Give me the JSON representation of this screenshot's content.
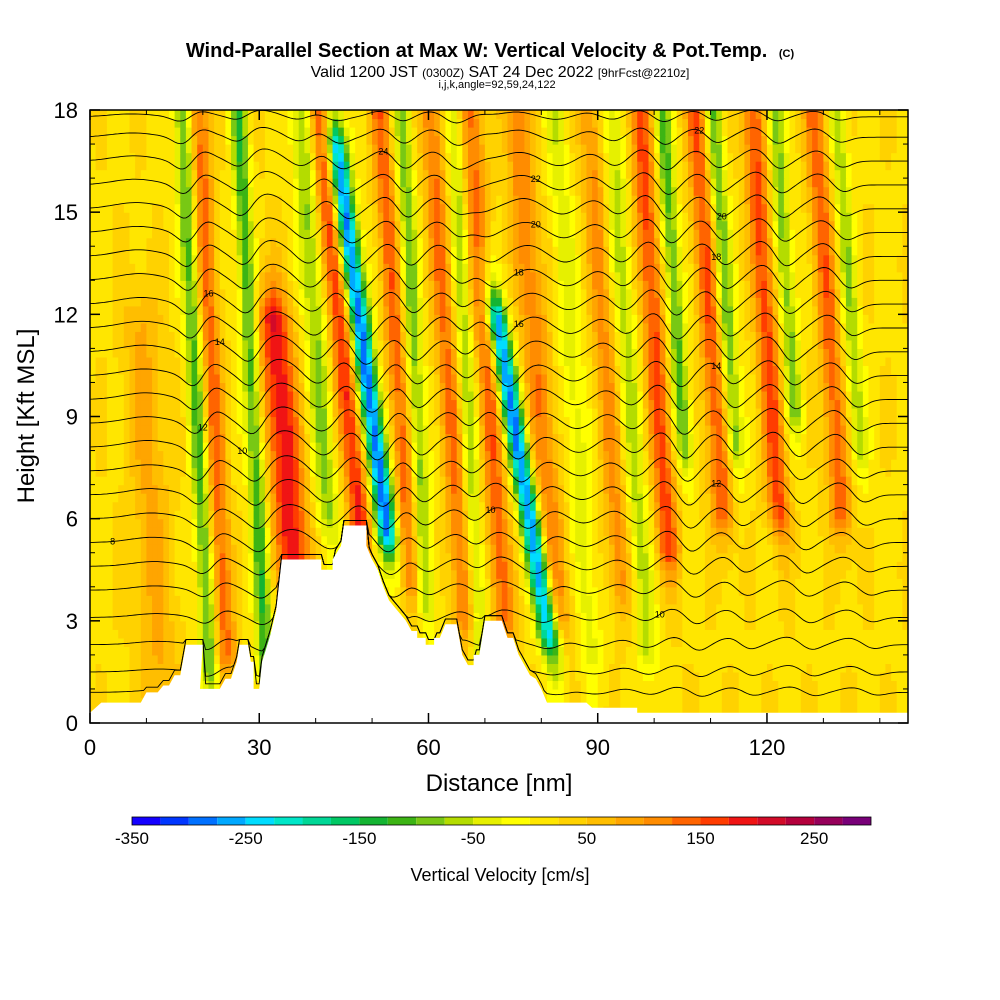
{
  "header": {
    "title_main": "Wind-Parallel Section at Max W: Vertical Velocity & Pot.Temp.",
    "title_unit": "(C)",
    "line2": [
      {
        "text": "Valid 1200 JST ",
        "size": "normal"
      },
      {
        "text": "(0300Z)",
        "size": "small"
      },
      {
        "text": " SAT 24 Dec 2022 ",
        "size": "normal"
      },
      {
        "text": "[9hrFcst@2210z]",
        "size": "small"
      }
    ],
    "line3": "i,j,k,angle=92,59,24,122"
  },
  "chart_data": {
    "type": "heatmap",
    "xlabel": "Distance [nm]",
    "ylabel": "Height [Kft MSL]",
    "xlim": [
      0,
      145
    ],
    "ylim": [
      0,
      18
    ],
    "x_ticks": [
      0,
      30,
      60,
      90,
      120
    ],
    "x_tick_labels": [
      "0",
      "30",
      "60",
      "90",
      "120"
    ],
    "y_ticks": [
      0,
      3,
      6,
      9,
      12,
      15,
      18
    ],
    "y_tick_labels": [
      "0",
      "3",
      "6",
      "9",
      "12",
      "15",
      "18"
    ],
    "vertical_velocity_bands": [
      {
        "x": 19,
        "w_cms": -130,
        "top_kft": 18,
        "bottom_kft": 1.5,
        "half_width_nm": 1.5,
        "tilt_nm_per_kft": -0.3
      },
      {
        "x": 22,
        "w_cms": 120,
        "top_kft": 18,
        "bottom_kft": 2.0,
        "half_width_nm": 1.8,
        "tilt_nm_per_kft": -0.3
      },
      {
        "x": 29,
        "w_cms": -140,
        "top_kft": 18,
        "bottom_kft": 1.5,
        "half_width_nm": 1.5,
        "tilt_nm_per_kft": -0.3
      },
      {
        "x": 34,
        "w_cms": 180,
        "top_kft": 12,
        "bottom_kft": 4.5,
        "half_width_nm": 3.0,
        "tilt_nm_per_kft": -0.5
      },
      {
        "x": 41,
        "w_cms": -100,
        "top_kft": 18,
        "bottom_kft": 6,
        "half_width_nm": 2.0,
        "tilt_nm_per_kft": -0.4
      },
      {
        "x": 46,
        "w_cms": 160,
        "top_kft": 18,
        "bottom_kft": 5.5,
        "half_width_nm": 2.0,
        "tilt_nm_per_kft": -0.6
      },
      {
        "x": 50,
        "w_cms": -320,
        "top_kft": 17,
        "bottom_kft": 5.5,
        "half_width_nm": 1.8,
        "tilt_nm_per_kft": -0.8
      },
      {
        "x": 55,
        "w_cms": 120,
        "top_kft": 18,
        "bottom_kft": 4,
        "half_width_nm": 1.8,
        "tilt_nm_per_kft": -0.4
      },
      {
        "x": 58,
        "w_cms": -110,
        "top_kft": 18,
        "bottom_kft": 3.5,
        "half_width_nm": 1.5,
        "tilt_nm_per_kft": -0.3
      },
      {
        "x": 64,
        "w_cms": 110,
        "top_kft": 18,
        "bottom_kft": 3,
        "half_width_nm": 2.0,
        "tilt_nm_per_kft": -0.4
      },
      {
        "x": 67,
        "w_cms": -90,
        "top_kft": 18,
        "bottom_kft": 2,
        "half_width_nm": 1.5,
        "tilt_nm_per_kft": -0.3
      },
      {
        "x": 71,
        "w_cms": 120,
        "top_kft": 18,
        "bottom_kft": 3,
        "half_width_nm": 2.0,
        "tilt_nm_per_kft": -0.4
      },
      {
        "x": 75,
        "w_cms": -300,
        "top_kft": 12,
        "bottom_kft": 2.5,
        "half_width_nm": 1.8,
        "tilt_nm_per_kft": -1.0
      },
      {
        "x": 80,
        "w_cms": 100,
        "top_kft": 18,
        "bottom_kft": 3,
        "half_width_nm": 2.5,
        "tilt_nm_per_kft": -0.5
      },
      {
        "x": 86,
        "w_cms": -60,
        "top_kft": 18,
        "bottom_kft": 2,
        "half_width_nm": 2.0,
        "tilt_nm_per_kft": -0.4
      },
      {
        "x": 92,
        "w_cms": 90,
        "top_kft": 18,
        "bottom_kft": 4,
        "half_width_nm": 2.0,
        "tilt_nm_per_kft": -0.4
      },
      {
        "x": 96,
        "w_cms": -80,
        "top_kft": 18,
        "bottom_kft": 2,
        "half_width_nm": 1.8,
        "tilt_nm_per_kft": -0.4
      },
      {
        "x": 101,
        "w_cms": 140,
        "top_kft": 18,
        "bottom_kft": 5,
        "half_width_nm": 2.0,
        "tilt_nm_per_kft": -0.4
      },
      {
        "x": 105,
        "w_cms": -130,
        "top_kft": 18,
        "bottom_kft": 8,
        "half_width_nm": 1.5,
        "tilt_nm_per_kft": -0.4
      },
      {
        "x": 111,
        "w_cms": 130,
        "top_kft": 18,
        "bottom_kft": 6,
        "half_width_nm": 2.0,
        "tilt_nm_per_kft": -0.4
      },
      {
        "x": 114,
        "w_cms": -120,
        "top_kft": 18,
        "bottom_kft": 8,
        "half_width_nm": 1.5,
        "tilt_nm_per_kft": -0.4
      },
      {
        "x": 121,
        "w_cms": 140,
        "top_kft": 18,
        "bottom_kft": 6,
        "half_width_nm": 2.0,
        "tilt_nm_per_kft": -0.4
      },
      {
        "x": 125,
        "w_cms": -110,
        "top_kft": 18,
        "bottom_kft": 9,
        "half_width_nm": 1.5,
        "tilt_nm_per_kft": -0.4
      },
      {
        "x": 132,
        "w_cms": 120,
        "top_kft": 18,
        "bottom_kft": 6,
        "half_width_nm": 2.0,
        "tilt_nm_per_kft": -0.4
      },
      {
        "x": 136,
        "w_cms": -90,
        "top_kft": 18,
        "bottom_kft": 8,
        "half_width_nm": 1.5,
        "tilt_nm_per_kft": -0.4
      },
      {
        "x": 10,
        "w_cms": 60,
        "top_kft": 12,
        "bottom_kft": 1,
        "half_width_nm": 3.5,
        "tilt_nm_per_kft": -0.3
      }
    ],
    "background_w_cms": 20,
    "terrain_kft": [
      [
        0,
        0.3
      ],
      [
        2,
        0.6
      ],
      [
        9,
        0.6
      ],
      [
        10,
        0.9
      ],
      [
        12,
        0.9
      ],
      [
        13,
        1.1
      ],
      [
        14,
        1.1
      ],
      [
        15,
        1.4
      ],
      [
        16,
        1.4
      ],
      [
        17,
        2.3
      ],
      [
        20,
        2.3
      ],
      [
        19.5,
        1.0
      ],
      [
        23,
        1.0
      ],
      [
        24,
        1.3
      ],
      [
        25,
        1.3
      ],
      [
        26,
        1.8
      ],
      [
        26.5,
        2.3
      ],
      [
        28,
        2.3
      ],
      [
        28.5,
        1.8
      ],
      [
        29,
        1.8
      ],
      [
        29,
        1.0
      ],
      [
        30,
        1.0
      ],
      [
        30.5,
        1.8
      ],
      [
        32,
        2.6
      ],
      [
        33,
        3.3
      ],
      [
        34,
        4.8
      ],
      [
        41,
        4.8
      ],
      [
        41,
        4.5
      ],
      [
        43,
        4.5
      ],
      [
        43,
        4.8
      ],
      [
        44.5,
        5.2
      ],
      [
        45,
        5.8
      ],
      [
        49,
        5.8
      ],
      [
        49,
        5.2
      ],
      [
        50,
        4.8
      ],
      [
        51,
        4.5
      ],
      [
        52,
        4.0
      ],
      [
        53,
        3.6
      ],
      [
        54,
        3.4
      ],
      [
        55,
        3.2
      ],
      [
        56,
        3.0
      ],
      [
        57,
        2.7
      ],
      [
        58,
        2.7
      ],
      [
        58,
        2.5
      ],
      [
        59.5,
        2.5
      ],
      [
        59.5,
        2.3
      ],
      [
        61,
        2.3
      ],
      [
        61,
        2.5
      ],
      [
        62,
        2.5
      ],
      [
        63,
        2.9
      ],
      [
        65,
        2.9
      ],
      [
        66,
        2.0
      ],
      [
        67,
        1.7
      ],
      [
        68,
        1.7
      ],
      [
        68,
        2.0
      ],
      [
        69,
        2.0
      ],
      [
        70,
        3.0
      ],
      [
        73,
        3.0
      ],
      [
        74,
        2.5
      ],
      [
        75,
        2.5
      ],
      [
        76,
        2.0
      ],
      [
        77,
        1.7
      ],
      [
        78,
        1.4
      ],
      [
        79,
        1.3
      ],
      [
        80,
        1.0
      ],
      [
        81,
        0.6
      ],
      [
        88,
        0.6
      ],
      [
        89,
        0.45
      ],
      [
        97,
        0.45
      ],
      [
        97,
        0.3
      ],
      [
        145,
        0.3
      ]
    ],
    "theta_contours": [
      {
        "base_kft": 0.9,
        "amp_kft": 0.5,
        "label": ""
      },
      {
        "base_kft": 1.5,
        "amp_kft": 0.6,
        "label": ""
      },
      {
        "base_kft": 2.3,
        "amp_kft": 0.7,
        "label": ""
      },
      {
        "base_kft": 3.1,
        "amp_kft": 0.8,
        "label": "10",
        "label_x": 101
      },
      {
        "base_kft": 3.9,
        "amp_kft": 0.9,
        "label": ""
      },
      {
        "base_kft": 4.6,
        "amp_kft": 1.0,
        "label": ""
      },
      {
        "base_kft": 5.3,
        "amp_kft": 1.1,
        "label": "8",
        "label_x": 4
      },
      {
        "base_kft": 6.0,
        "amp_kft": 1.2,
        "label": "10",
        "label_x": 71
      },
      {
        "base_kft": 6.7,
        "amp_kft": 1.3,
        "label": "12",
        "label_x": 111
      },
      {
        "base_kft": 7.4,
        "amp_kft": 1.3,
        "label": ""
      },
      {
        "base_kft": 8.1,
        "amp_kft": 1.4,
        "label": "10",
        "label_x": 27
      },
      {
        "base_kft": 8.8,
        "amp_kft": 1.4,
        "label": "12",
        "label_x": 20
      },
      {
        "base_kft": 9.5,
        "amp_kft": 1.4,
        "label": ""
      },
      {
        "base_kft": 10.2,
        "amp_kft": 1.4,
        "label": "14",
        "label_x": 111
      },
      {
        "base_kft": 10.9,
        "amp_kft": 1.4,
        "label": "14",
        "label_x": 23
      },
      {
        "base_kft": 11.6,
        "amp_kft": 1.4,
        "label": "16",
        "label_x": 76
      },
      {
        "base_kft": 12.3,
        "amp_kft": 1.4,
        "label": "16",
        "label_x": 21
      },
      {
        "base_kft": 13.0,
        "amp_kft": 1.4,
        "label": "18",
        "label_x": 76
      },
      {
        "base_kft": 13.7,
        "amp_kft": 1.4,
        "label": "18",
        "label_x": 111
      },
      {
        "base_kft": 14.4,
        "amp_kft": 1.3,
        "label": "20",
        "label_x": 79
      },
      {
        "base_kft": 15.1,
        "amp_kft": 1.3,
        "label": "20",
        "label_x": 112
      },
      {
        "base_kft": 15.8,
        "amp_kft": 1.2,
        "label": "22",
        "label_x": 79
      },
      {
        "base_kft": 16.5,
        "amp_kft": 1.1,
        "label": "24",
        "label_x": 52
      },
      {
        "base_kft": 17.2,
        "amp_kft": 0.9,
        "label": "22",
        "label_x": 108
      },
      {
        "base_kft": 17.8,
        "amp_kft": 0.6,
        "label": ""
      }
    ],
    "colorbar": {
      "title": "Vertical Velocity [cm/s]",
      "min": -350,
      "max": 300,
      "step": 25,
      "tick_values": [
        -350,
        -250,
        -150,
        -50,
        50,
        150,
        250
      ],
      "tick_labels": [
        "-350",
        "-250",
        "-150",
        "-50",
        "50",
        "150",
        "250"
      ],
      "colors": [
        "#1400ff",
        "#0036ff",
        "#0070ff",
        "#00a8ff",
        "#00dcff",
        "#00e6c8",
        "#00d796",
        "#00c864",
        "#14b432",
        "#3cb414",
        "#78c814",
        "#b4dc00",
        "#e6f000",
        "#ffff00",
        "#ffe600",
        "#ffd200",
        "#ffbe00",
        "#ffa500",
        "#ff8c00",
        "#ff6400",
        "#ff3c00",
        "#f01414",
        "#d20a28",
        "#b4003c",
        "#96005a",
        "#780078"
      ]
    }
  }
}
